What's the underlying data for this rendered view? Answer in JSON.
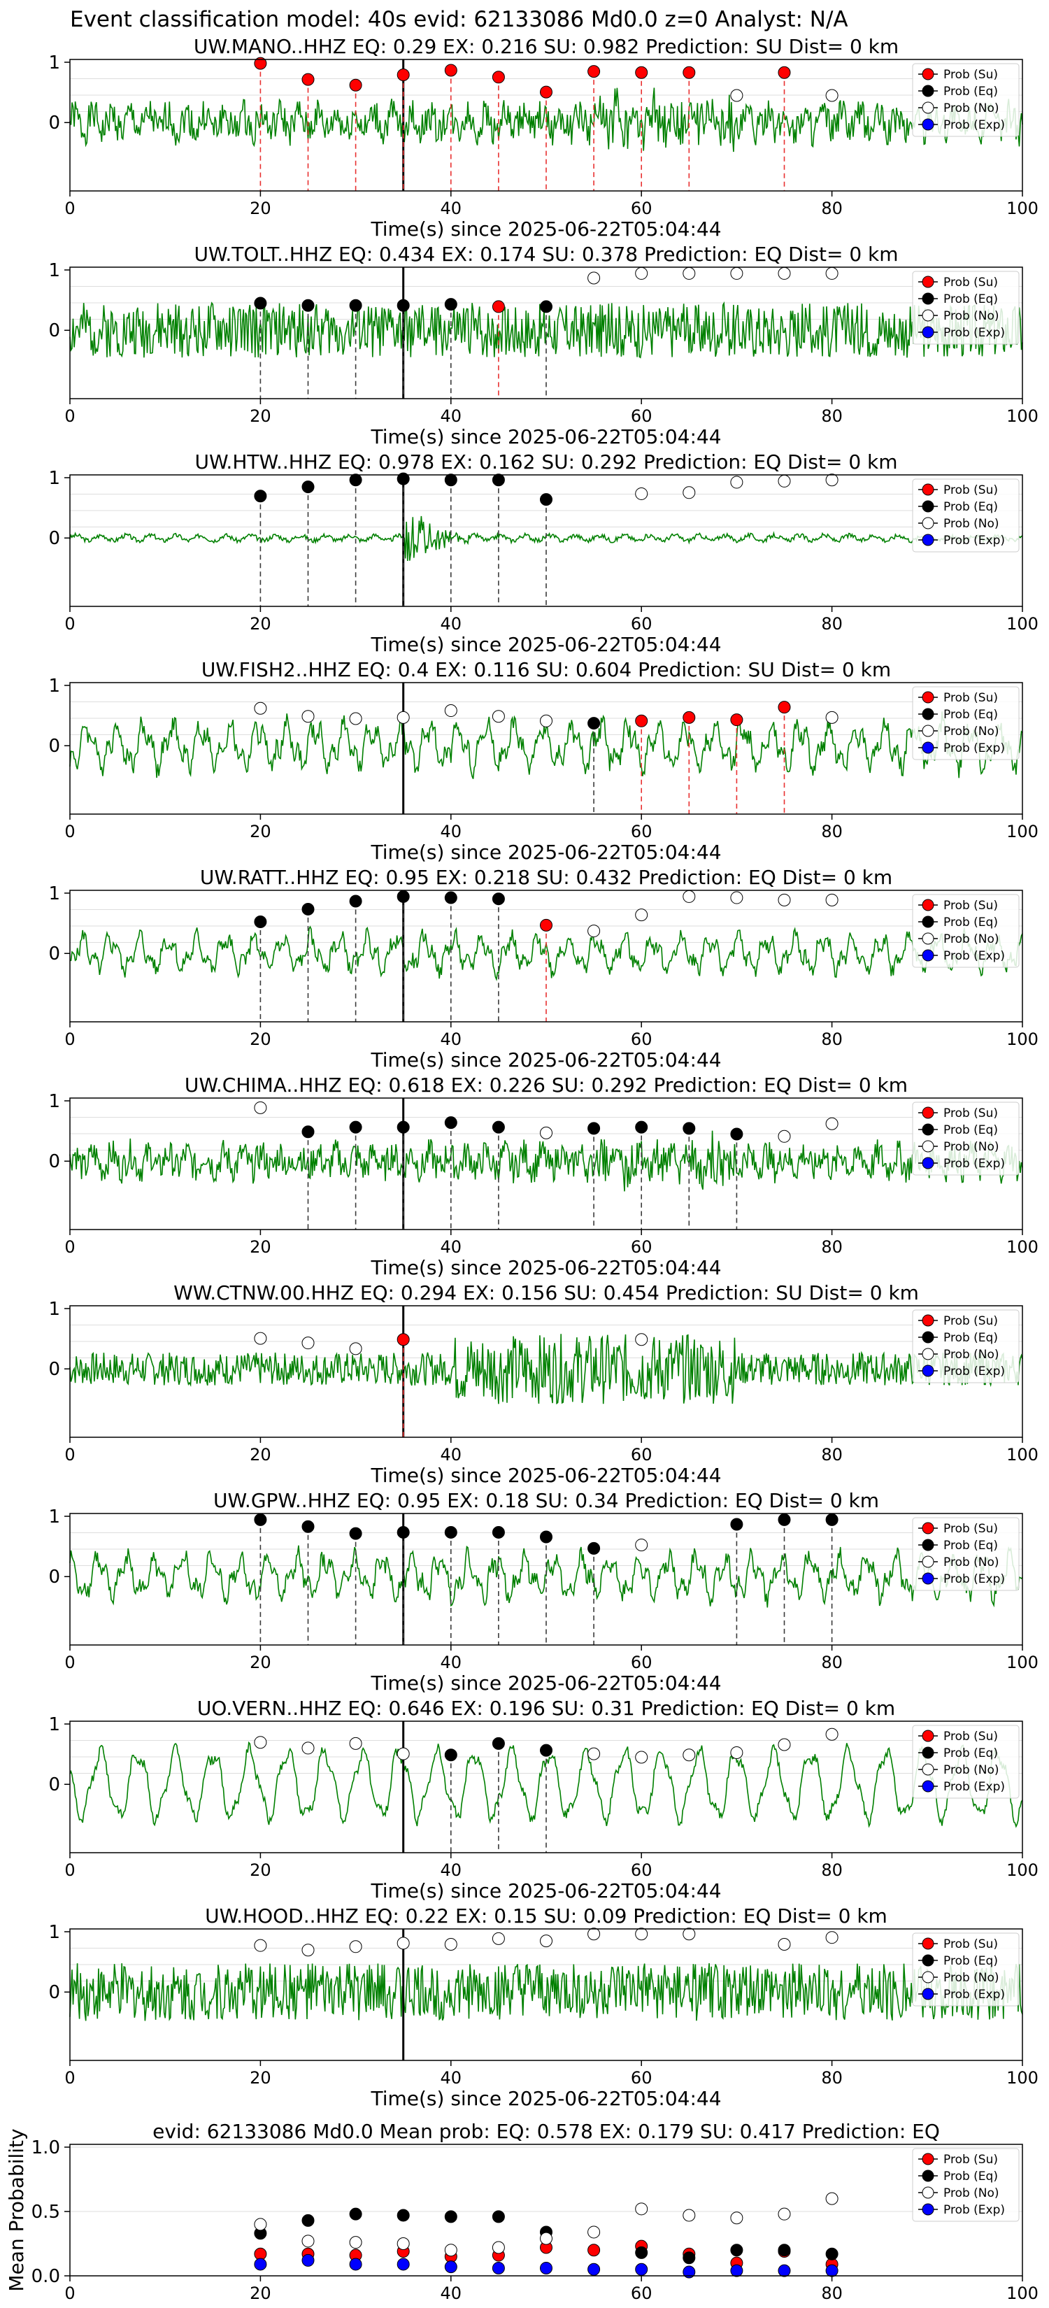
{
  "suptitle": "Event classification model: 40s evid: 62133086 Md0.0 z=0 Analyst: N/A",
  "colors": {
    "su": "#ff0000",
    "eq": "#000000",
    "no": "#ffffff",
    "exp": "#0000ff",
    "trace": "#008000",
    "pick": "#000000"
  },
  "legend": [
    "Prob (Su)",
    "Prob (Eq)",
    "Prob (No)",
    "Prob (Exp)"
  ],
  "xlabel": "Time(s) since 2025-06-22T05:04:44",
  "x_ticks": [
    "0",
    "20",
    "40",
    "60",
    "80",
    "100"
  ],
  "y_ticks": [
    "1",
    "0"
  ],
  "chart_data": [
    {
      "type": "line",
      "title": "UW.MANO..HHZ   EQ: 0.29  EX: 0.216  SU: 0.982   Prediction: SU    Dist= 0 km",
      "pick": 35,
      "xlim": [
        0,
        100
      ],
      "seed": 1,
      "style": "hf",
      "amp": 0.75,
      "points": [
        {
          "x": 20,
          "y": 0.98,
          "c": "su"
        },
        {
          "x": 25,
          "y": 0.7,
          "c": "su"
        },
        {
          "x": 30,
          "y": 0.6,
          "c": "su"
        },
        {
          "x": 35,
          "y": 0.78,
          "c": "su"
        },
        {
          "x": 40,
          "y": 0.86,
          "c": "su"
        },
        {
          "x": 45,
          "y": 0.74,
          "c": "su"
        },
        {
          "x": 50,
          "y": 0.48,
          "c": "su"
        },
        {
          "x": 55,
          "y": 0.84,
          "c": "su"
        },
        {
          "x": 60,
          "y": 0.82,
          "c": "su"
        },
        {
          "x": 65,
          "y": 0.82,
          "c": "su"
        },
        {
          "x": 70,
          "y": 0.42,
          "c": "no"
        },
        {
          "x": 75,
          "y": 0.82,
          "c": "su"
        },
        {
          "x": 80,
          "y": 0.42,
          "c": "no"
        }
      ]
    },
    {
      "type": "line",
      "title": "UW.TOLT..HHZ   EQ: 0.434  EX: 0.174  SU: 0.378   Prediction: EQ    Dist= 0 km",
      "pick": 35,
      "xlim": [
        0,
        100
      ],
      "seed": 2,
      "style": "noise",
      "amp": 0.9,
      "points": [
        {
          "x": 20,
          "y": 0.42,
          "c": "eq"
        },
        {
          "x": 25,
          "y": 0.38,
          "c": "eq"
        },
        {
          "x": 30,
          "y": 0.38,
          "c": "eq"
        },
        {
          "x": 35,
          "y": 0.38,
          "c": "eq"
        },
        {
          "x": 40,
          "y": 0.4,
          "c": "eq"
        },
        {
          "x": 45,
          "y": 0.36,
          "c": "su"
        },
        {
          "x": 50,
          "y": 0.36,
          "c": "eq"
        },
        {
          "x": 55,
          "y": 0.86,
          "c": "no"
        },
        {
          "x": 60,
          "y": 0.94,
          "c": "no"
        },
        {
          "x": 65,
          "y": 0.94,
          "c": "no"
        },
        {
          "x": 70,
          "y": 0.94,
          "c": "no"
        },
        {
          "x": 75,
          "y": 0.94,
          "c": "no"
        },
        {
          "x": 80,
          "y": 0.94,
          "c": "no"
        }
      ]
    },
    {
      "type": "line",
      "title": "UW.HTW..HHZ   EQ: 0.978  EX: 0.162  SU: 0.292   Prediction: EQ    Dist= 0 km",
      "pick": 35,
      "xlim": [
        0,
        100
      ],
      "seed": 3,
      "style": "quiet",
      "amp": 0.3,
      "points": [
        {
          "x": 20,
          "y": 0.68,
          "c": "eq"
        },
        {
          "x": 25,
          "y": 0.84,
          "c": "eq"
        },
        {
          "x": 30,
          "y": 0.96,
          "c": "eq"
        },
        {
          "x": 35,
          "y": 0.98,
          "c": "eq"
        },
        {
          "x": 40,
          "y": 0.96,
          "c": "eq"
        },
        {
          "x": 45,
          "y": 0.96,
          "c": "eq"
        },
        {
          "x": 50,
          "y": 0.62,
          "c": "eq"
        },
        {
          "x": 60,
          "y": 0.72,
          "c": "no"
        },
        {
          "x": 65,
          "y": 0.74,
          "c": "no"
        },
        {
          "x": 70,
          "y": 0.92,
          "c": "no"
        },
        {
          "x": 75,
          "y": 0.94,
          "c": "no"
        },
        {
          "x": 80,
          "y": 0.96,
          "c": "no"
        }
      ]
    },
    {
      "type": "line",
      "title": "UW.FISH2..HHZ   EQ: 0.4  EX: 0.116  SU: 0.604   Prediction: SU    Dist= 0 km",
      "pick": 35,
      "xlim": [
        0,
        100
      ],
      "seed": 4,
      "style": "lf",
      "amp": 0.7,
      "points": [
        {
          "x": 20,
          "y": 0.6,
          "c": "no"
        },
        {
          "x": 25,
          "y": 0.46,
          "c": "no"
        },
        {
          "x": 30,
          "y": 0.42,
          "c": "no"
        },
        {
          "x": 35,
          "y": 0.44,
          "c": "no"
        },
        {
          "x": 40,
          "y": 0.56,
          "c": "no"
        },
        {
          "x": 45,
          "y": 0.46,
          "c": "no"
        },
        {
          "x": 50,
          "y": 0.38,
          "c": "no"
        },
        {
          "x": 55,
          "y": 0.34,
          "c": "eq"
        },
        {
          "x": 60,
          "y": 0.38,
          "c": "su"
        },
        {
          "x": 65,
          "y": 0.44,
          "c": "su"
        },
        {
          "x": 70,
          "y": 0.4,
          "c": "su"
        },
        {
          "x": 75,
          "y": 0.62,
          "c": "su"
        },
        {
          "x": 80,
          "y": 0.44,
          "c": "no"
        }
      ]
    },
    {
      "type": "line",
      "title": "UW.RATT..HHZ   EQ: 0.95  EX: 0.218  SU: 0.432   Prediction: EQ    Dist= 0 km",
      "pick": 35,
      "xlim": [
        0,
        100
      ],
      "seed": 5,
      "style": "lf",
      "amp": 0.55,
      "points": [
        {
          "x": 20,
          "y": 0.5,
          "c": "eq"
        },
        {
          "x": 25,
          "y": 0.72,
          "c": "eq"
        },
        {
          "x": 30,
          "y": 0.86,
          "c": "eq"
        },
        {
          "x": 35,
          "y": 0.94,
          "c": "eq"
        },
        {
          "x": 40,
          "y": 0.92,
          "c": "eq"
        },
        {
          "x": 45,
          "y": 0.9,
          "c": "eq"
        },
        {
          "x": 50,
          "y": 0.44,
          "c": "su"
        },
        {
          "x": 55,
          "y": 0.34,
          "c": "no"
        },
        {
          "x": 60,
          "y": 0.62,
          "c": "no"
        },
        {
          "x": 65,
          "y": 0.94,
          "c": "no"
        },
        {
          "x": 70,
          "y": 0.92,
          "c": "no"
        },
        {
          "x": 75,
          "y": 0.88,
          "c": "no"
        },
        {
          "x": 80,
          "y": 0.88,
          "c": "no"
        }
      ]
    },
    {
      "type": "line",
      "title": "UW.CHIMA..HHZ   EQ: 0.618  EX: 0.226  SU: 0.292   Prediction: EQ    Dist= 0 km",
      "pick": 35,
      "xlim": [
        0,
        100
      ],
      "seed": 6,
      "style": "hf",
      "amp": 0.7,
      "points": [
        {
          "x": 20,
          "y": 0.88,
          "c": "no"
        },
        {
          "x": 25,
          "y": 0.46,
          "c": "eq"
        },
        {
          "x": 30,
          "y": 0.54,
          "c": "eq"
        },
        {
          "x": 35,
          "y": 0.54,
          "c": "eq"
        },
        {
          "x": 40,
          "y": 0.62,
          "c": "eq"
        },
        {
          "x": 45,
          "y": 0.54,
          "c": "eq"
        },
        {
          "x": 50,
          "y": 0.44,
          "c": "no"
        },
        {
          "x": 55,
          "y": 0.52,
          "c": "eq"
        },
        {
          "x": 60,
          "y": 0.54,
          "c": "eq"
        },
        {
          "x": 65,
          "y": 0.52,
          "c": "eq"
        },
        {
          "x": 70,
          "y": 0.42,
          "c": "eq"
        },
        {
          "x": 75,
          "y": 0.38,
          "c": "no"
        },
        {
          "x": 80,
          "y": 0.6,
          "c": "no"
        }
      ]
    },
    {
      "type": "line",
      "title": "WW.CTNW.00.HHZ   EQ: 0.294  EX: 0.156  SU: 0.454   Prediction: SU    Dist= 0 km",
      "pick": 35,
      "xlim": [
        0,
        100
      ],
      "seed": 7,
      "style": "burst",
      "amp": 0.85,
      "points": [
        {
          "x": 20,
          "y": 0.48,
          "c": "no"
        },
        {
          "x": 25,
          "y": 0.4,
          "c": "no"
        },
        {
          "x": 30,
          "y": 0.3,
          "c": "no"
        },
        {
          "x": 35,
          "y": 0.46,
          "c": "su"
        },
        {
          "x": 60,
          "y": 0.46,
          "c": "no"
        }
      ]
    },
    {
      "type": "line",
      "title": "UW.GPW..HHZ   EQ: 0.95  EX: 0.18  SU: 0.34   Prediction: EQ    Dist= 0 km",
      "pick": 35,
      "xlim": [
        0,
        100
      ],
      "seed": 8,
      "style": "lf",
      "amp": 0.65,
      "points": [
        {
          "x": 20,
          "y": 0.94,
          "c": "eq"
        },
        {
          "x": 25,
          "y": 0.82,
          "c": "eq"
        },
        {
          "x": 30,
          "y": 0.7,
          "c": "eq"
        },
        {
          "x": 35,
          "y": 0.72,
          "c": "eq"
        },
        {
          "x": 40,
          "y": 0.72,
          "c": "eq"
        },
        {
          "x": 45,
          "y": 0.72,
          "c": "eq"
        },
        {
          "x": 50,
          "y": 0.64,
          "c": "eq"
        },
        {
          "x": 55,
          "y": 0.44,
          "c": "eq"
        },
        {
          "x": 60,
          "y": 0.5,
          "c": "no"
        },
        {
          "x": 70,
          "y": 0.86,
          "c": "eq"
        },
        {
          "x": 75,
          "y": 0.94,
          "c": "eq"
        },
        {
          "x": 80,
          "y": 0.94,
          "c": "eq"
        }
      ]
    },
    {
      "type": "line",
      "title": "UO.VERN..HHZ   EQ: 0.646  EX: 0.196  SU: 0.31   Prediction: EQ    Dist= 0 km",
      "pick": 35,
      "xlim": [
        0,
        100
      ],
      "seed": 9,
      "style": "wave",
      "amp": 0.85,
      "points": [
        {
          "x": 20,
          "y": 0.68,
          "c": "no"
        },
        {
          "x": 25,
          "y": 0.58,
          "c": "no"
        },
        {
          "x": 30,
          "y": 0.66,
          "c": "no"
        },
        {
          "x": 35,
          "y": 0.48,
          "c": "no"
        },
        {
          "x": 40,
          "y": 0.46,
          "c": "eq"
        },
        {
          "x": 45,
          "y": 0.66,
          "c": "eq"
        },
        {
          "x": 50,
          "y": 0.54,
          "c": "eq"
        },
        {
          "x": 55,
          "y": 0.48,
          "c": "no"
        },
        {
          "x": 60,
          "y": 0.42,
          "c": "no"
        },
        {
          "x": 65,
          "y": 0.46,
          "c": "no"
        },
        {
          "x": 70,
          "y": 0.5,
          "c": "no"
        },
        {
          "x": 75,
          "y": 0.64,
          "c": "no"
        },
        {
          "x": 80,
          "y": 0.82,
          "c": "no"
        }
      ]
    },
    {
      "type": "line",
      "title": "UW.HOOD..HHZ   EQ: 0.22  EX: 0.15  SU: 0.09   Prediction: EQ    Dist= 0 km",
      "pick": 35,
      "xlim": [
        0,
        100
      ],
      "seed": 10,
      "style": "noise",
      "amp": 0.95,
      "points": [
        {
          "x": 20,
          "y": 0.76,
          "c": "no"
        },
        {
          "x": 25,
          "y": 0.68,
          "c": "no"
        },
        {
          "x": 30,
          "y": 0.74,
          "c": "no"
        },
        {
          "x": 35,
          "y": 0.8,
          "c": "no"
        },
        {
          "x": 40,
          "y": 0.78,
          "c": "no"
        },
        {
          "x": 45,
          "y": 0.88,
          "c": "no"
        },
        {
          "x": 50,
          "y": 0.84,
          "c": "no"
        },
        {
          "x": 55,
          "y": 0.96,
          "c": "no"
        },
        {
          "x": 60,
          "y": 0.96,
          "c": "no"
        },
        {
          "x": 65,
          "y": 0.96,
          "c": "no"
        },
        {
          "x": 75,
          "y": 0.78,
          "c": "no"
        },
        {
          "x": 80,
          "y": 0.9,
          "c": "no"
        }
      ]
    },
    {
      "type": "scatter",
      "title": "evid: 62133086  Md0.0   Mean prob:   EQ: 0.578  EX: 0.179  SU: 0.417   Prediction: EQ",
      "ylabel": "Mean Probability",
      "xlim": [
        0,
        100
      ],
      "ylim": [
        0,
        1
      ],
      "y_ticks": [
        "1.0",
        "0.5",
        "0.0"
      ],
      "x": [
        20,
        25,
        30,
        35,
        40,
        45,
        50,
        55,
        60,
        65,
        70,
        75,
        80
      ],
      "series": [
        {
          "name": "Prob (Su)",
          "c": "su",
          "values": [
            0.17,
            0.17,
            0.16,
            0.19,
            0.15,
            0.16,
            0.22,
            0.2,
            0.23,
            0.17,
            0.1,
            0.19,
            0.09
          ]
        },
        {
          "name": "Prob (Eq)",
          "c": "eq",
          "values": [
            0.33,
            0.43,
            0.48,
            0.47,
            0.46,
            0.46,
            0.34,
            null,
            0.18,
            0.14,
            0.2,
            0.2,
            0.17
          ]
        },
        {
          "name": "Prob (No)",
          "c": "no",
          "values": [
            0.4,
            0.27,
            0.26,
            0.25,
            0.2,
            0.22,
            0.29,
            0.34,
            0.52,
            0.47,
            0.45,
            0.48,
            0.6
          ]
        },
        {
          "name": "Prob (Exp)",
          "c": "exp",
          "values": [
            0.09,
            0.12,
            0.09,
            0.09,
            0.07,
            0.06,
            0.06,
            0.05,
            0.05,
            0.03,
            0.04,
            0.04,
            0.04
          ]
        }
      ]
    }
  ]
}
